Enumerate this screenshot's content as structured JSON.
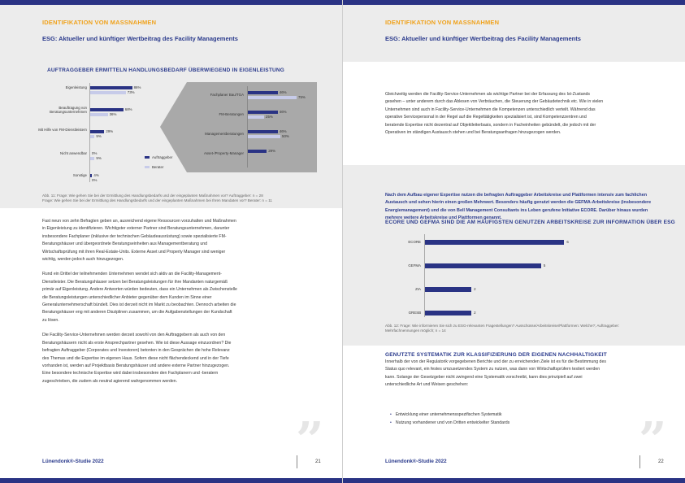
{
  "left_page": {
    "section_title": "IDENTIFIKATION VON MASSNAHMEN",
    "section_subtitle": "ESG: Aktueller und künftiger Wertbeitrag des Facility Managements",
    "chart_heading": "AUFTRAGGEBER ERMITTELN HANDLUNGSBEDARF ÜBERWIEGEND IN EIGENLEISTUNG",
    "caption_line1": "Abb. 11: Frage: Wie gehen Sie bei der Ermittlung des Handlungsbedarfs und der eingeplanten Maßnahmen vor? Auftraggeber: n = 28",
    "caption_line2": "Frage: Wie gehen Sie bei der Ermittlung des Handlungsbedarfs und der eingeplanten Maßnahmen bei Ihren Mandaten vor? Berater: n = 11",
    "paragraphs": [
      "Fast neun von zehn Befragten geben an, ausreichend eigene Ressourcen vorzuhalten und Maßnahmen in Eigenleistung zu identifizieren. Wichtigster externer Partner sind Beratungsunternehmen, darunter insbesondere Fachplaner (inklusive der technischen Gebäudeausrüstung) sowie spezialisierte FM-Beratungshäuser und übergeordnete Beratungseinheiten aus Managementberatung und Wirtschaftsprüfung mit ihren Real-Estate-Units. Externe Asset und Property Manager sind weniger wichtig, werden jedoch auch hinzugezogen.",
      "Rund ein Drittel der teilnehmenden Unternehmen wendet sich aktiv an die Facility-Management-Dienstleister. Die Beratungshäuser setzen bei Beratungsleistungen für ihre Mandanten naturgemäß primär auf Eigenleistung. Andere Antworten würden bedeuten, dass ein Unternehmen als Zwischenstelle die Beratungsleistungen unterschiedlicher Anbieter gegenüber dem Kunden im Sinne einer Generalunternehmerschaft bündelt. Dies ist derzeit nicht im Markt zu beobachten. Dennoch arbeiten die Beratungshäuser eng mit anderen Disziplinen zusammen, um die Aufgabenstellungen der Kundschaft zu lösen.",
      "Die Facility-Service-Unternehmen werden derzeit sowohl von den Auftraggebern als auch von den Beratungshäusern nicht als erste Ansprechpartner gesehen. Wie ist diese Aussage einzuordnen? Die befragten Auftraggeber (Corporates und Investoren) betonten in den Gesprächen die hohe Relevanz des Themas und die Expertise im eigenen Haus. Sofern diese nicht flächendeckend und in der Tiefe vorhanden ist, werden auf Projektbasis Beratungshäuser und andere externe Partner hinzugezogen. Eine besondere technische Expertise wird dabei insbesondere den Fachplanern und -beratern zugeschrieben, die zudem als neutral agierend wahrgenommen werden."
    ],
    "footer_brand": "Lünendonk®-Studie 2022",
    "page_number": "21"
  },
  "right_page": {
    "section_title": "IDENTIFIKATION VON MASSNAHMEN",
    "section_subtitle": "ESG: Aktueller und künftiger Wertbeitrag des Facility Managements",
    "intro_paragraph": "Gleichzeitig werden die Facility-Service-Unternehmen als wichtige Partner bei der Erfassung des Ist-Zustands gesehen – unter anderem durch das Ablesen von Verbräuchen, die Steuerung der Gebäudetechnik etc. Wie in vielen Unternehmen sind auch in Facility-Service-Unternehmen die Kompetenzen unterschiedlich verteilt. Während das operative Servicepersonal in der Regel auf die Regeltätigkeiten spezialisiert ist, sind Kompetenzzentren und beratende Expertise nicht dezentral auf Objektleiterbasis, sondern in Facheinheiten gebündelt, die jedoch mit der Operativen im ständigen Austausch stehen und bei Beratungsanfragen hinzugezogen werden.",
    "highlight": "Nach dem Aufbau eigener Expertise nutzen die befragten Auftraggeber Arbeitskreise und Plattformen intensiv zum fachlichen Austausch und sehen hierin einen großen Mehrwert. Besonders häufig genutzt werden die GEFMA-Arbeitskreise (insbesondere Energiemanagement) und die von Bell Management Consultants ins Leben gerufene Initiative ECORE. Darüber hinaus wurden mehrere weitere Arbeitskreise und Plattformen genannt.",
    "chart_heading": "ECORE UND GEFMA SIND DIE AM HÄUFIGSTEN GENUTZEN ARBEITSKREISE ZUR INFORMATION ÜBER ESG",
    "caption_line1": "Abb. 12: Frage: Wie informieren Sie sich zu ESG-relevanten Fragestellungen? Ausschüsse/Arbeitskreise/Plattformen: Welche?; Auftraggeber:",
    "caption_line2": "Mehrfachnennungen möglich; n = 14",
    "sub_heading": "GENUTZTE SYSTEMATIK ZUR KLASSIFIZIERUNG DER EIGENEN NACHHALTIGKEIT",
    "body_paragraph": "Innerhalb der von der Regulatorik vorgegebenen Berichte und der zu erreichenden Ziele ist es für die Bestimmung des Status quo relevant, ein festes umzusetzendes System zu nutzen, was dann von Wirtschaftsprüfern testiert werden kann. Solange der Gesetzgeber nicht zwingend eine Systematik vorschreibt, kann dies prinzipiell auf zwei unterschiedliche Art und Weisen geschehen:",
    "bullets": [
      "Entwicklung einer unternehmensspezifischen Systematik",
      "Nutzung vorhandener und von Dritten entwickelter Standards"
    ],
    "footer_brand": "Lünendonk®-Studie 2022",
    "page_number": "22"
  },
  "chart_data": [
    {
      "type": "bar",
      "orientation": "horizontal",
      "title": "AUFTRAGGEBER ERMITTELN HANDLUNGSBEDARF ÜBERWIEGEND IN EIGENLEISTUNG",
      "categories": [
        "Eigenleistung",
        "Beauftragung von Beratungsunternehmen",
        "Mit Hilfe von FM-Dienstleistern",
        "Nicht anwendbar",
        "Sonstige"
      ],
      "series": [
        {
          "name": "Auftraggeber",
          "values": [
            86,
            68,
            29,
            0,
            4
          ],
          "labels": [
            "86%",
            "68%",
            "29%",
            "0%",
            "4%"
          ]
        },
        {
          "name": "Berater",
          "values": [
            73,
            36,
            9,
            9,
            0
          ],
          "labels": [
            "73%",
            "36%",
            "9%",
            "9%",
            "0%"
          ]
        }
      ],
      "colors": {
        "Auftraggeber": "#2a3384",
        "Berater": "#c7cbe9"
      },
      "xlim": [
        0,
        100
      ]
    },
    {
      "type": "bar",
      "orientation": "horizontal",
      "title": "",
      "categories": [
        "Fachplaner Bau/TGA",
        "FM-Beratungen",
        "Managementberatungen",
        "Asset-/Property-Manager"
      ],
      "series": [
        {
          "name": "Auftraggeber",
          "values": [
            46,
            46,
            46,
            29
          ],
          "labels": [
            "46%",
            "46%",
            "46%",
            "29%"
          ]
        },
        {
          "name": "Berater",
          "values": [
            75,
            25,
            50,
            0
          ],
          "labels": [
            "75%",
            "25%",
            "50%",
            ""
          ]
        }
      ],
      "colors": {
        "Auftraggeber": "#2a3384",
        "Berater": "#c7cbe9"
      },
      "xlim": [
        0,
        100
      ]
    },
    {
      "type": "bar",
      "orientation": "horizontal",
      "title": "ECORE UND GEFMA SIND DIE AM HÄUFIGSTEN GENUTZEN ARBEITSKREISE ZUR INFORMATION ÜBER ESG",
      "categories": [
        "ECORE",
        "GEFMA",
        "ZIA",
        "GRESB"
      ],
      "values": [
        6,
        5,
        2,
        2
      ],
      "labels": [
        "6",
        "5",
        "2",
        "2"
      ],
      "colors": {
        "bar": "#2a3384"
      },
      "xlim": [
        0,
        7
      ]
    }
  ]
}
